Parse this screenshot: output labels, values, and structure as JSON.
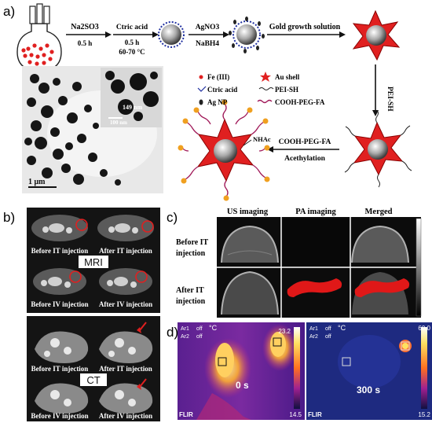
{
  "panels": {
    "a": {
      "label": "a)",
      "steps": [
        {
          "reagent": "Na2SO3",
          "time": "0.5 h"
        },
        {
          "reagent": "Ctric acid",
          "time": "0.5 h",
          "temp": "60-70 °C"
        },
        {
          "reagent": "AgNO3",
          "reagent2": "NaBH4"
        },
        {
          "reagent": "Gold growth solution"
        }
      ],
      "pei_sh_step": "PEI-SH",
      "final_step": "COOH-PEG-FA",
      "final_step2": "Acethylation",
      "nhac_label": "NHAc",
      "legend": [
        {
          "text": "Fe (III)",
          "icon": "red-dot-icon"
        },
        {
          "text": "Au shell",
          "icon": "red-star-icon"
        },
        {
          "text": "Ctric acid",
          "icon": "citric-acid-icon"
        },
        {
          "text": "PEI-SH",
          "icon": "wave-icon"
        },
        {
          "text": "Ag NP",
          "icon": "drop-icon"
        },
        {
          "text": "COOH-PEG-FA",
          "icon": "red-wave-icon"
        }
      ],
      "tem_scale_main": "1 μm",
      "tem_scale_inset": "100 nm",
      "tem_size_label": "149 nm"
    },
    "b": {
      "label": "b)",
      "mri_label": "MRI",
      "ct_label": "CT",
      "mri_captions": [
        "Before IT injection",
        "After IT injection",
        "Before IV injection",
        "After IV injection"
      ],
      "ct_captions": [
        "Before IT injection",
        "After IT injection",
        "Before IV injection",
        "After IV injection"
      ]
    },
    "c": {
      "label": "c)",
      "columns": [
        "US imaging",
        "PA imaging",
        "Merged"
      ],
      "rows": [
        {
          "line1": "Before IT",
          "line2": "injection"
        },
        {
          "line1": "After IT",
          "line2": "injection"
        }
      ]
    },
    "d": {
      "label": "d)",
      "left": {
        "ar1": "Ar1",
        "ar2": "Ar2",
        "off": "off",
        "unit": "°C",
        "max": "23.2",
        "min": "14.5",
        "time": "0 s",
        "brand": "FLIR"
      },
      "right": {
        "ar1": "Ar1",
        "ar2": "Ar2",
        "off": "off",
        "unit": "°C",
        "max": "60.0",
        "min": "15.2",
        "time": "300 s",
        "brand": "FLIR"
      }
    }
  },
  "colors": {
    "red": "#e02020",
    "dark": "#1a1a1a",
    "thermal_bg": "#3a1a8a",
    "thermal_bg2": "#1e2a80"
  }
}
